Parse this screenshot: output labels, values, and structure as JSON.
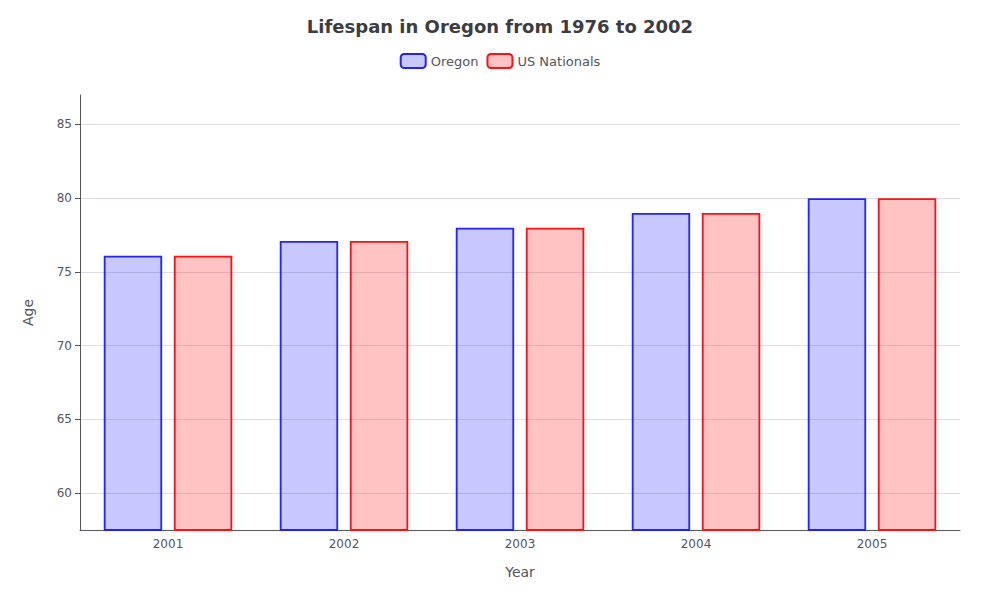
{
  "chart_data": {
    "type": "bar",
    "title": "Lifespan in Oregon from 1976 to 2002",
    "xlabel": "Year",
    "ylabel": "Age",
    "categories": [
      "2001",
      "2002",
      "2003",
      "2004",
      "2005"
    ],
    "series": [
      {
        "name": "Oregon",
        "color": "#2222ff",
        "values": [
          76.1,
          77.1,
          78.0,
          79.0,
          80.0
        ]
      },
      {
        "name": "US Nationals",
        "color": "#ff1111",
        "values": [
          76.1,
          77.1,
          78.0,
          79.0,
          80.0
        ]
      }
    ],
    "ylim": [
      57.5,
      87
    ],
    "yticks": [
      60,
      65,
      70,
      75,
      80,
      85
    ],
    "grid": true,
    "legend": "top"
  }
}
